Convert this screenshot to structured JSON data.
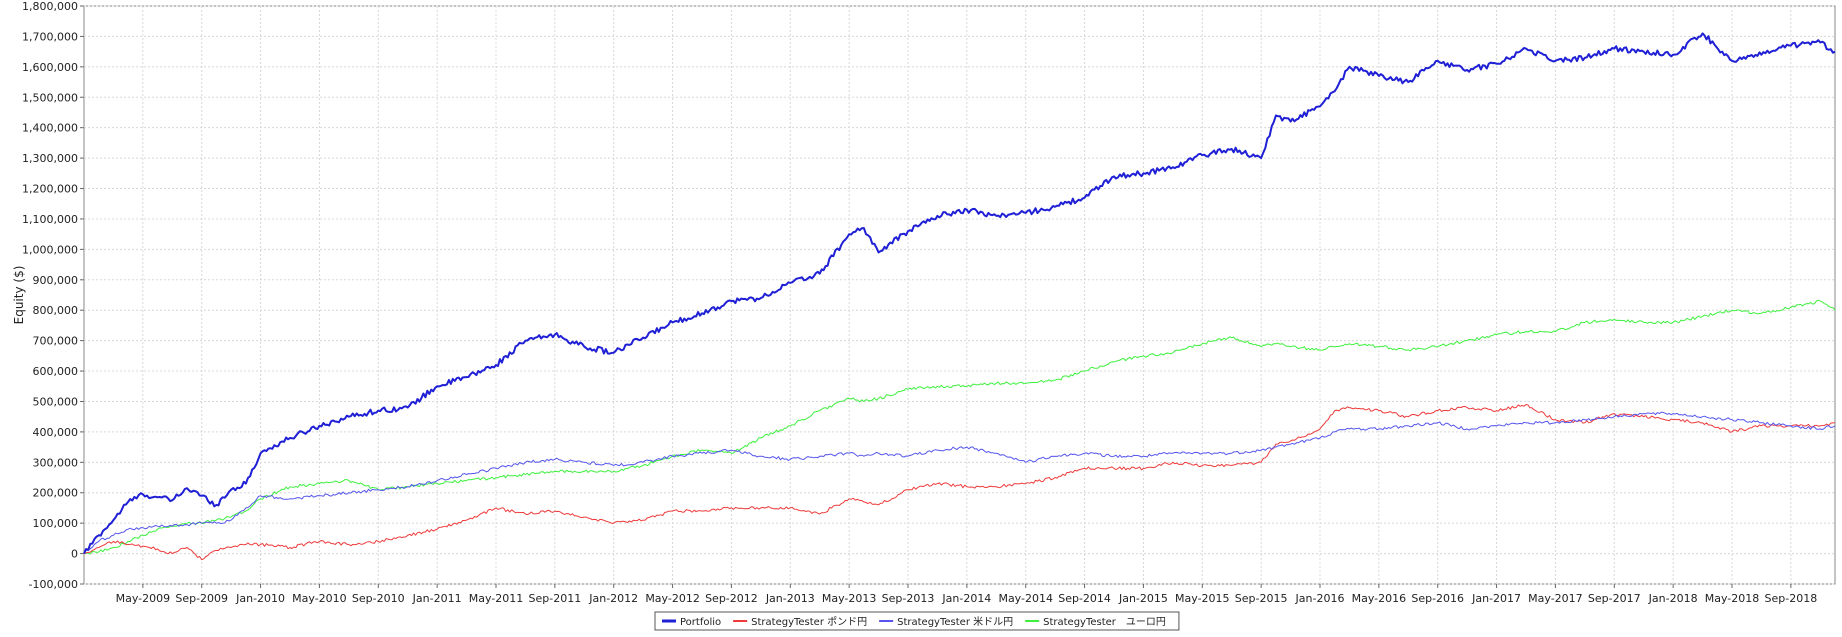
{
  "chart_data": {
    "type": "line",
    "title": "",
    "xlabel": "",
    "ylabel": "Equity ($)",
    "xlim": [
      "2009-01",
      "2018-12"
    ],
    "ylim": [
      -100000,
      1800000
    ],
    "grid": true,
    "legend_placement": "bottom-center",
    "y_ticks": [
      "-100,000",
      "0",
      "100,000",
      "200,000",
      "300,000",
      "400,000",
      "500,000",
      "600,000",
      "700,000",
      "800,000",
      "900,000",
      "1,000,000",
      "1,100,000",
      "1,200,000",
      "1,300,000",
      "1,400,000",
      "1,500,000",
      "1,600,000",
      "1,700,000",
      "1,800,000"
    ],
    "x_ticks": [
      "May-2009",
      "Sep-2009",
      "Jan-2010",
      "May-2010",
      "Sep-2010",
      "Jan-2011",
      "May-2011",
      "Sep-2011",
      "Jan-2012",
      "May-2012",
      "Sep-2012",
      "Jan-2013",
      "May-2013",
      "Sep-2013",
      "Jan-2014",
      "May-2014",
      "Sep-2014",
      "Jan-2015",
      "May-2015",
      "Sep-2015",
      "Jan-2016",
      "May-2016",
      "Sep-2016",
      "Jan-2017",
      "May-2017",
      "Sep-2017",
      "Jan-2018",
      "May-2018",
      "Sep-2018"
    ],
    "x": [
      "2009-01",
      "2009-02",
      "2009-03",
      "2009-04",
      "2009-05",
      "2009-06",
      "2009-07",
      "2009-08",
      "2009-09",
      "2009-10",
      "2009-11",
      "2009-12",
      "2010-01",
      "2010-03",
      "2010-05",
      "2010-07",
      "2010-09",
      "2010-11",
      "2011-01",
      "2011-03",
      "2011-05",
      "2011-07",
      "2011-09",
      "2011-11",
      "2012-01",
      "2012-03",
      "2012-05",
      "2012-07",
      "2012-09",
      "2012-11",
      "2013-01",
      "2013-03",
      "2013-05",
      "2013-06",
      "2013-07",
      "2013-09",
      "2013-11",
      "2014-01",
      "2014-03",
      "2014-05",
      "2014-07",
      "2014-09",
      "2014-11",
      "2015-01",
      "2015-03",
      "2015-05",
      "2015-07",
      "2015-09",
      "2015-10",
      "2015-11",
      "2016-01",
      "2016-02",
      "2016-03",
      "2016-05",
      "2016-07",
      "2016-09",
      "2016-11",
      "2017-01",
      "2017-03",
      "2017-05",
      "2017-07",
      "2017-09",
      "2017-11",
      "2018-01",
      "2018-03",
      "2018-05",
      "2018-07",
      "2018-09",
      "2018-11",
      "2018-12"
    ],
    "series": [
      {
        "name": "Portfolio",
        "color": "#1f1fd6",
        "width": 2,
        "values": [
          0,
          60000,
          110000,
          170000,
          195000,
          185000,
          175000,
          215000,
          190000,
          160000,
          210000,
          230000,
          330000,
          380000,
          420000,
          450000,
          470000,
          480000,
          550000,
          580000,
          620000,
          700000,
          720000,
          680000,
          660000,
          710000,
          760000,
          790000,
          830000,
          840000,
          890000,
          920000,
          1050000,
          1070000,
          990000,
          1060000,
          1110000,
          1130000,
          1110000,
          1120000,
          1140000,
          1170000,
          1240000,
          1250000,
          1270000,
          1310000,
          1330000,
          1300000,
          1440000,
          1420000,
          1470000,
          1520000,
          1600000,
          1570000,
          1550000,
          1620000,
          1590000,
          1610000,
          1660000,
          1620000,
          1630000,
          1660000,
          1650000,
          1640000,
          1710000,
          1620000,
          1640000,
          1670000,
          1680000,
          1650000
        ]
      },
      {
        "name": "StrategyTester ポンド円",
        "color": "#ee3a3a",
        "width": 1,
        "values": [
          0,
          20000,
          40000,
          30000,
          25000,
          15000,
          0,
          20000,
          -20000,
          10000,
          20000,
          30000,
          30000,
          20000,
          40000,
          30000,
          40000,
          60000,
          80000,
          110000,
          150000,
          130000,
          140000,
          120000,
          100000,
          110000,
          140000,
          140000,
          150000,
          150000,
          150000,
          130000,
          180000,
          170000,
          160000,
          210000,
          230000,
          220000,
          220000,
          230000,
          250000,
          280000,
          280000,
          280000,
          300000,
          290000,
          290000,
          300000,
          360000,
          370000,
          410000,
          470000,
          480000,
          470000,
          450000,
          470000,
          480000,
          470000,
          490000,
          440000,
          430000,
          460000,
          450000,
          440000,
          430000,
          400000,
          420000,
          420000,
          420000,
          430000
        ]
      },
      {
        "name": "StrategyTester 米ドル円",
        "color": "#5555ee",
        "width": 1,
        "values": [
          0,
          40000,
          60000,
          80000,
          85000,
          90000,
          90000,
          95000,
          100000,
          100000,
          110000,
          150000,
          190000,
          180000,
          190000,
          200000,
          210000,
          220000,
          240000,
          260000,
          280000,
          300000,
          310000,
          300000,
          290000,
          300000,
          320000,
          330000,
          340000,
          320000,
          310000,
          320000,
          330000,
          320000,
          330000,
          320000,
          340000,
          350000,
          330000,
          300000,
          320000,
          330000,
          320000,
          320000,
          330000,
          330000,
          330000,
          340000,
          350000,
          360000,
          380000,
          400000,
          410000,
          410000,
          420000,
          430000,
          410000,
          420000,
          430000,
          430000,
          440000,
          450000,
          460000,
          460000,
          450000,
          440000,
          430000,
          420000,
          410000,
          420000
        ]
      },
      {
        "name": "StrategyTester　ユーロ円",
        "color": "#3ef03e",
        "width": 1,
        "values": [
          0,
          5000,
          20000,
          40000,
          60000,
          80000,
          90000,
          100000,
          100000,
          110000,
          120000,
          140000,
          180000,
          220000,
          230000,
          240000,
          210000,
          220000,
          230000,
          240000,
          250000,
          260000,
          270000,
          270000,
          270000,
          290000,
          320000,
          340000,
          330000,
          380000,
          420000,
          470000,
          510000,
          500000,
          510000,
          540000,
          550000,
          550000,
          560000,
          560000,
          570000,
          600000,
          630000,
          650000,
          660000,
          690000,
          710000,
          680000,
          690000,
          680000,
          670000,
          680000,
          690000,
          680000,
          670000,
          680000,
          700000,
          720000,
          730000,
          730000,
          760000,
          770000,
          760000,
          760000,
          780000,
          800000,
          790000,
          810000,
          830000,
          800000
        ]
      }
    ]
  }
}
